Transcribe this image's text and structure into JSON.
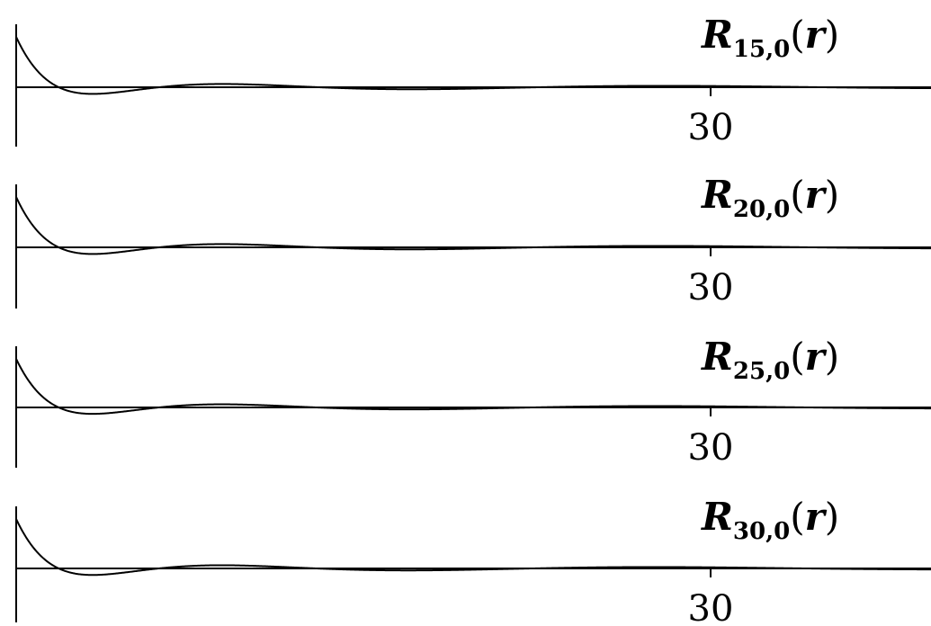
{
  "chart_data": [
    {
      "type": "line",
      "title_symbol": "R",
      "title_sub": "15,0",
      "title_open": "(",
      "title_var": "r",
      "title_close": ")",
      "n": 15,
      "l": 0,
      "xlim": [
        0,
        45
      ],
      "xticks": [
        30
      ],
      "xtick_labels": [
        "30"
      ],
      "grid": false,
      "series": [
        {
          "function": "radial",
          "n": 15,
          "l": 0
        }
      ]
    },
    {
      "type": "line",
      "title_symbol": "R",
      "title_sub": "20,0",
      "title_open": "(",
      "title_var": "r",
      "title_close": ")",
      "n": 20,
      "l": 0,
      "xlim": [
        0,
        45
      ],
      "xticks": [
        30
      ],
      "xtick_labels": [
        "30"
      ],
      "grid": false,
      "series": [
        {
          "function": "radial",
          "n": 20,
          "l": 0
        }
      ]
    },
    {
      "type": "line",
      "title_symbol": "R",
      "title_sub": "25,0",
      "title_open": "(",
      "title_var": "r",
      "title_close": ")",
      "n": 25,
      "l": 0,
      "xlim": [
        0,
        45
      ],
      "xticks": [
        30
      ],
      "xtick_labels": [
        "30"
      ],
      "grid": false,
      "series": [
        {
          "function": "radial",
          "n": 25,
          "l": 0
        }
      ]
    },
    {
      "type": "line",
      "title_symbol": "R",
      "title_sub": "30,0",
      "title_open": "(",
      "title_var": "r",
      "title_close": ")",
      "n": 30,
      "l": 0,
      "xlim": [
        0,
        45
      ],
      "xticks": [
        30
      ],
      "xtick_labels": [
        "30"
      ],
      "grid": false,
      "series": [
        {
          "function": "radial",
          "n": 30,
          "l": 0
        }
      ]
    }
  ]
}
